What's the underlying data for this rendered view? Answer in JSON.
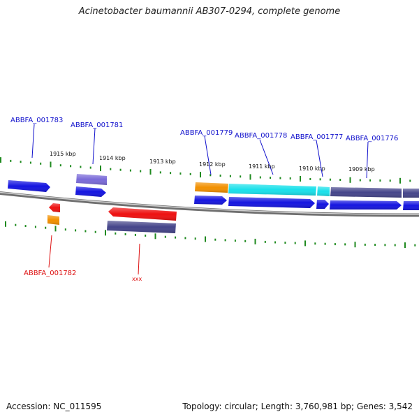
{
  "title": "Acinetobacter baumannii AB307-0294, complete genome",
  "footer": {
    "accession": "Accession: NC_011595",
    "summary": "Topology: circular; Length: 3,760,981 bp; Genes: 3,542"
  },
  "colors": {
    "label_forward": "#1010cc",
    "label_reverse": "#dd1010",
    "tick": "#1f8a1f",
    "backbone": "#888888",
    "blue": "#1515e0",
    "red": "#ee1010",
    "orange": "#f29000",
    "cyan": "#19e0ea",
    "navy": "#45458a",
    "violet": "#7a6ad8"
  },
  "kbp_labels": [
    "1915 kbp",
    "1914 kbp",
    "1913 kbp",
    "1912 kbp",
    "1911 kbp",
    "1910 kbp",
    "1909 kbp"
  ],
  "gene_labels": [
    {
      "text": "ABBFA_001783",
      "strand": "forward"
    },
    {
      "text": "ABBFA_001781",
      "strand": "forward"
    },
    {
      "text": "ABBFA_001779",
      "strand": "forward"
    },
    {
      "text": "ABBFA_001778",
      "strand": "forward"
    },
    {
      "text": "ABBFA_001777",
      "strand": "forward"
    },
    {
      "text": "ABBFA_001776",
      "strand": "forward"
    },
    {
      "text": "ABBFA_001782",
      "strand": "reverse"
    },
    {
      "text": "xxx",
      "strand": "reverse"
    }
  ]
}
